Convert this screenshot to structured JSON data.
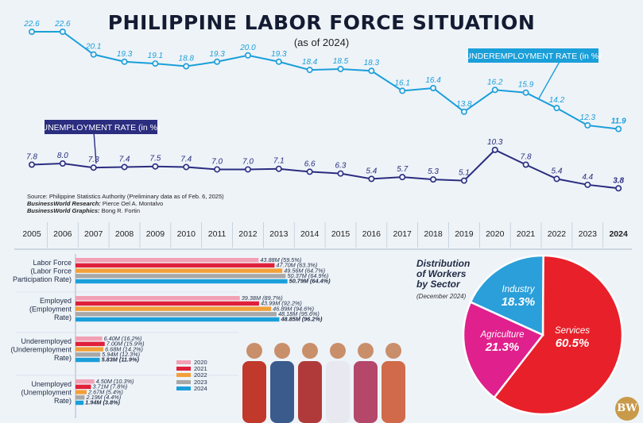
{
  "title": "PHILIPPINE LABOR FORCE SITUATION",
  "subtitle": "(as of 2024)",
  "source": {
    "line1": "Source: Philippine Statistics Authority (Preliminary data as of Feb. 6, 2025)",
    "line2_label": "BusinessWorld Research:",
    "line2_value": " Pierce Oel A. Montalvo",
    "line3_label": "BusinessWorld Graphics:",
    "line3_value": " Bong R. Fortin"
  },
  "logo_text": "BW",
  "colors": {
    "underemployment": "#1a9fd9",
    "unemployment": "#2b2d7f",
    "y2020": "#f2a0b4",
    "y2021": "#e0203a",
    "y2022": "#f2a03a",
    "y2023": "#a8a8a8",
    "y2024": "#1a9fd9",
    "services": "#e8202a",
    "agriculture": "#e0208c",
    "industry": "#2a9fd9"
  },
  "chart_data": [
    {
      "type": "line",
      "x": [
        "2005",
        "2006",
        "2007",
        "2008",
        "2009",
        "2010",
        "2011",
        "2012",
        "2013",
        "2014",
        "2015",
        "2016",
        "2017",
        "2018",
        "2019",
        "2020",
        "2021",
        "2022",
        "2023",
        "2024"
      ],
      "series": [
        {
          "name": "UNDEREMPLOYMENT RATE (in %)",
          "values": [
            22.6,
            22.6,
            20.1,
            19.3,
            19.1,
            18.8,
            19.3,
            20.0,
            19.3,
            18.4,
            18.5,
            18.3,
            16.1,
            16.4,
            13.8,
            16.2,
            15.9,
            14.2,
            12.3,
            11.9
          ],
          "labels": [
            "22.6",
            "22.6",
            "20.1",
            "19.3",
            "19.1",
            "18.8",
            "19.3",
            "20.0",
            "19.3",
            "18.4",
            "18.5",
            "18.3",
            "16.1",
            "16.4",
            "13.8",
            "16.2",
            "15.9",
            "14.2",
            "12.3",
            "11.9"
          ]
        },
        {
          "name": "UNEMPLOYMENT RATE (in %)",
          "values": [
            7.8,
            8.0,
            7.3,
            7.4,
            7.5,
            7.4,
            7.0,
            7.0,
            7.1,
            6.6,
            6.3,
            5.4,
            5.7,
            5.3,
            5.1,
            10.3,
            7.8,
            5.4,
            4.4,
            3.8
          ],
          "labels": [
            "7.8",
            "8.0",
            "7.3",
            "7.4",
            "7.5",
            "7.4",
            "7.0",
            "7.0",
            "7.1",
            "6.6",
            "6.3",
            "5.4",
            "5.7",
            "5.3",
            "5.1",
            "10.3",
            "7.8",
            "5.4",
            "4.4",
            "3.8"
          ]
        }
      ]
    },
    {
      "type": "bar",
      "years": [
        "2020",
        "2021",
        "2022",
        "2023",
        "2024"
      ],
      "groups": [
        {
          "label": [
            "Labor Force",
            "(Labor Force",
            "Participation Rate)"
          ],
          "values": [
            43.88,
            47.7,
            49.56,
            50.37,
            50.79
          ],
          "labels": [
            "43.88M (59.5%)",
            "47.70M (63.3%)",
            "49.56M (64.7%)",
            "50.37M (64.9%)",
            "50.79M (64.4%)"
          ]
        },
        {
          "label": [
            "Employed",
            "(Employment",
            "Rate)"
          ],
          "values": [
            39.38,
            43.99,
            46.89,
            48.18,
            48.85
          ],
          "labels": [
            "39.38M (89.7%)",
            "43.99M (92.2%)",
            "46.89M (94.6%)",
            "48.18M (95.6%)",
            "48.85M (96.2%)"
          ]
        },
        {
          "label": [
            "Underemployed",
            "(Underemployment",
            "Rate)"
          ],
          "values": [
            6.4,
            7.0,
            6.68,
            5.94,
            5.83
          ],
          "labels": [
            "6.40M (16.2%)",
            "7.00M (15.9%)",
            "6.68M (14.2%)",
            "5.94M (12.3%)",
            "5.83M (11.9%)"
          ]
        },
        {
          "label": [
            "Unemployed",
            "(Unemployment",
            "Rate)"
          ],
          "values": [
            4.5,
            3.71,
            2.67,
            2.19,
            1.94
          ],
          "labels": [
            "4.50M (10.3%)",
            "3.71M (7.8%)",
            "2.67M (5.4%)",
            "2.19M (4.4%)",
            "1.94M (3.8%)"
          ]
        }
      ]
    },
    {
      "type": "pie",
      "title": [
        "Distribution",
        "of Workers",
        "by Sector"
      ],
      "date": "(December 2024)",
      "slices": [
        {
          "name": "Services",
          "value": 60.5,
          "label": "60.5%"
        },
        {
          "name": "Agriculture",
          "value": 21.3,
          "label": "21.3%"
        },
        {
          "name": "Industry",
          "value": 18.3,
          "label": "18.3%"
        }
      ]
    }
  ]
}
